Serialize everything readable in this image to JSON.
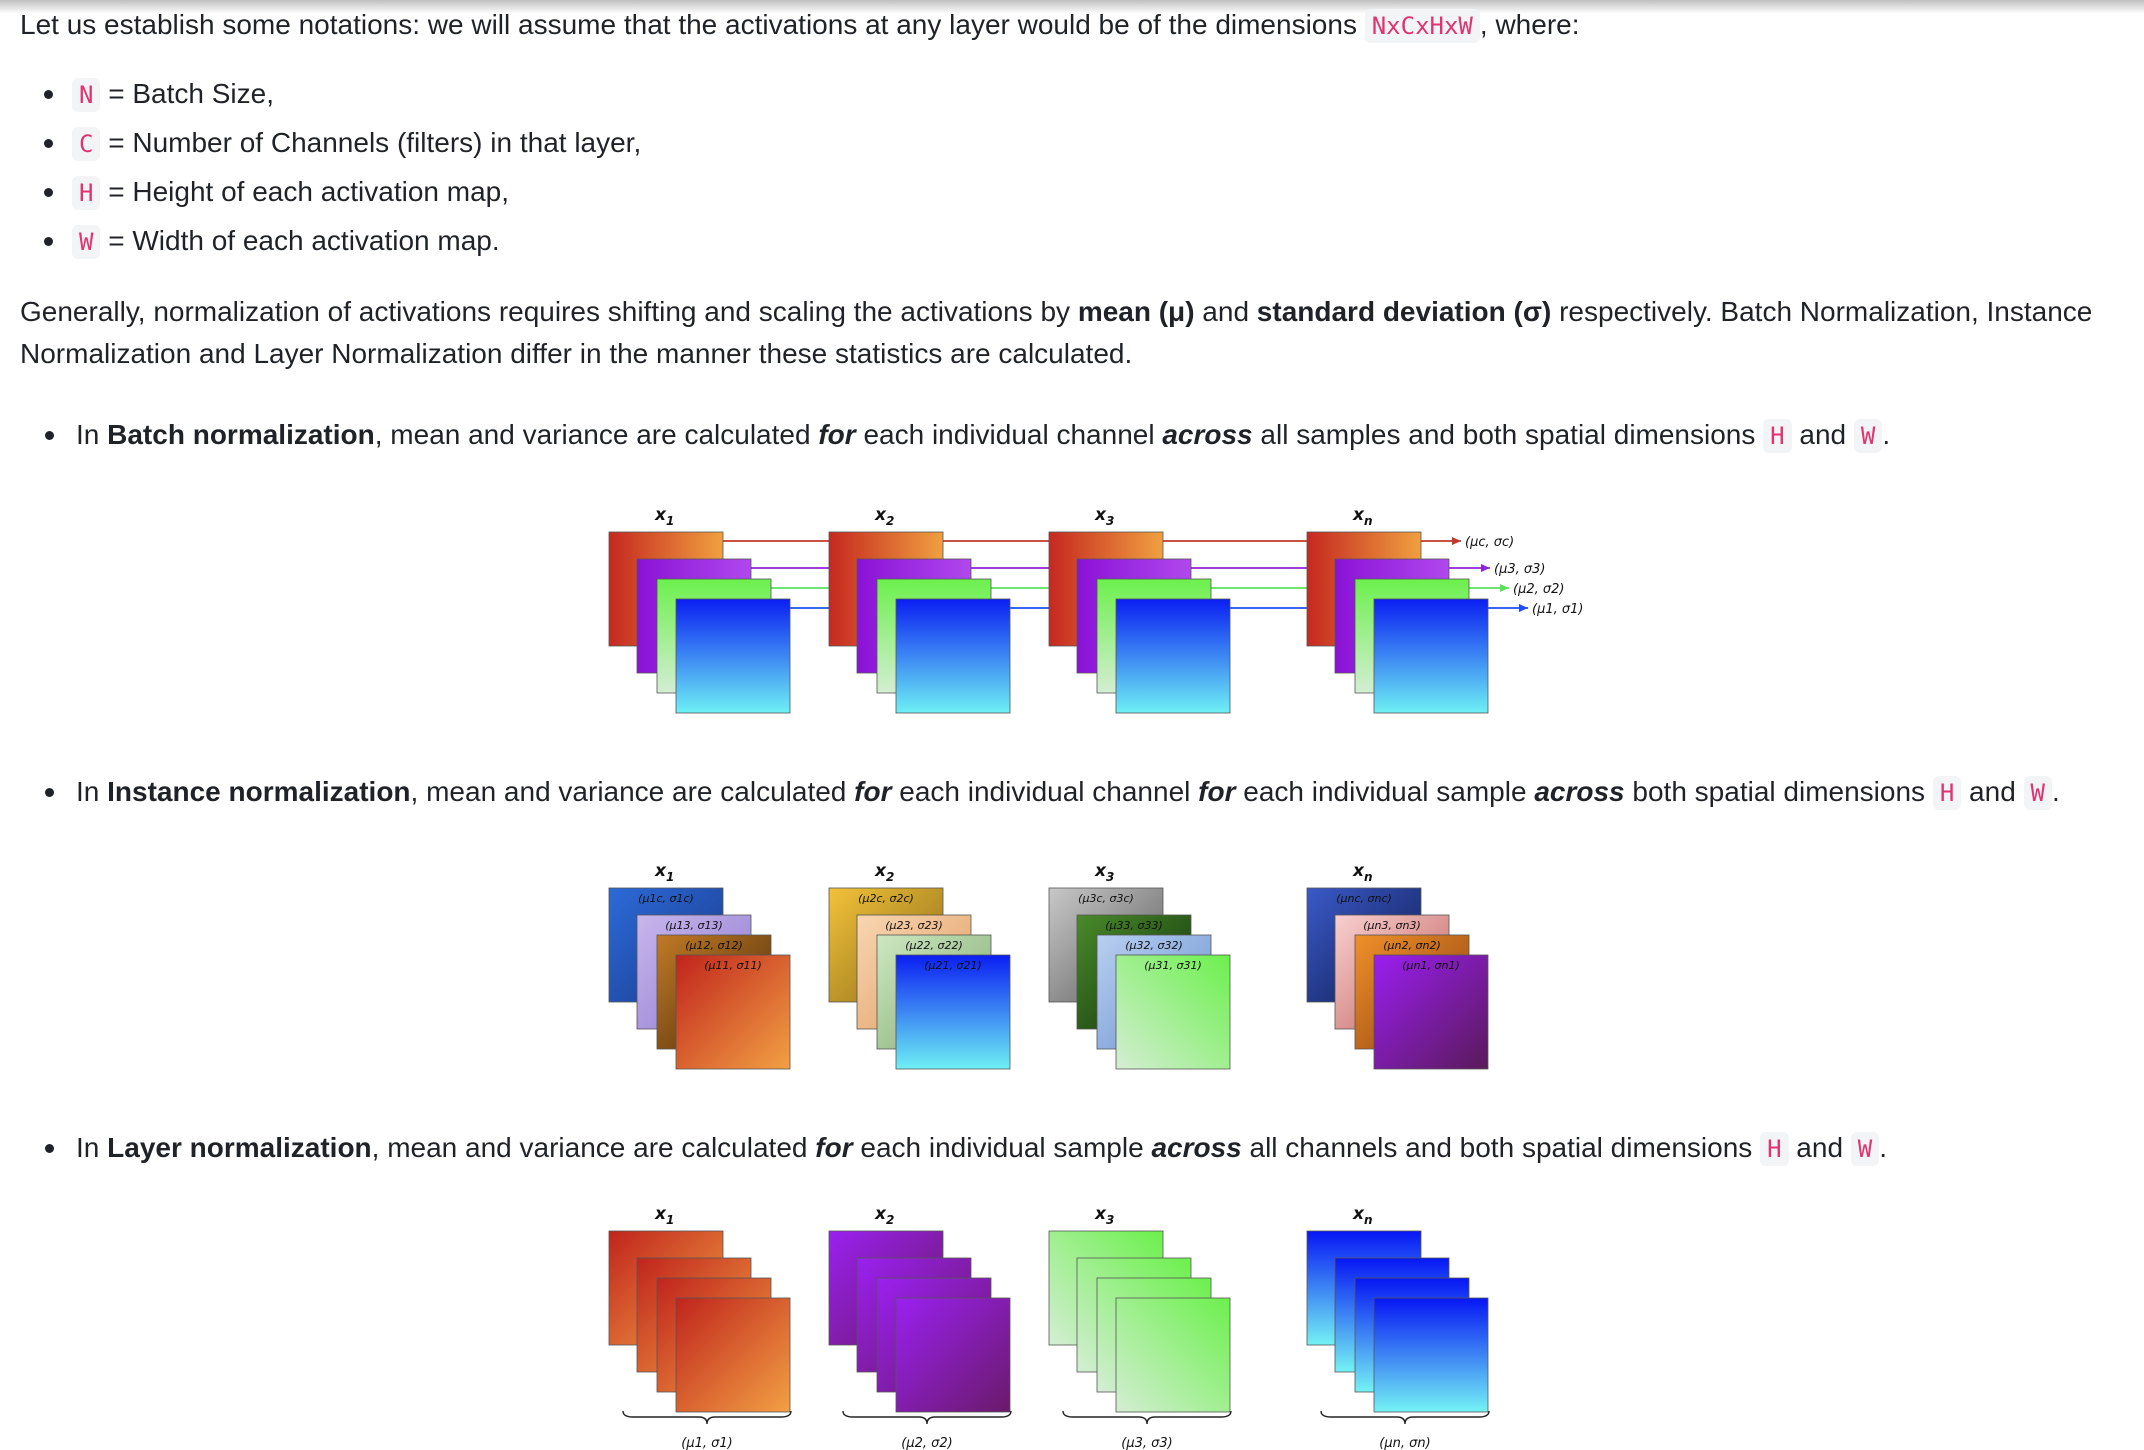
{
  "intro": {
    "before": "Let us establish some notations: we will assume that the activations at any layer would be of the dimensions ",
    "dims_code": "NxCxHxW",
    "after": ", where:"
  },
  "notation": [
    {
      "code": "N",
      "text": " = Batch Size,"
    },
    {
      "code": "C",
      "text": " = Number of Channels (filters) in that layer,"
    },
    {
      "code": "H",
      "text": " = Height of each activation map,"
    },
    {
      "code": "W",
      "text": " = Width of each activation map."
    }
  ],
  "general": {
    "t1": "Generally, normalization of activations requires shifting and scaling the activations by ",
    "b1": "mean (μ)",
    "t2": " and ",
    "b2": "standard deviation (σ)",
    "t3": " respectively. Batch Normalization, Instance Normalization and Layer Normalization differ in the manner these statistics are calculated."
  },
  "batch": {
    "t1": "In ",
    "b1": "Batch normalization",
    "t2": ", mean and variance are calculated ",
    "i1": "for",
    "t3": " each individual channel ",
    "i2": "across",
    "t4": " all samples and both spatial dimensions ",
    "c1": "H",
    "t5": " and ",
    "c2": "W",
    "t6": "."
  },
  "instance": {
    "t1": "In ",
    "b1": "Instance normalization",
    "t2": ", mean and variance are calculated ",
    "i1": "for",
    "t3": " each individual channel ",
    "i2": "for",
    "t4": " each individual sample ",
    "i3": "across",
    "t5": " both spatial dimensions ",
    "c1": "H",
    "t6": " and ",
    "c2": "W",
    "t7": "."
  },
  "layer": {
    "t1": "In ",
    "b1": "Layer normalization",
    "t2": ", mean and variance are calculated ",
    "i1": "for",
    "t3": " each individual sample ",
    "i2": "across",
    "t4": " all channels and both spatial dimensions ",
    "c1": "H",
    "t5": " and ",
    "c2": "W",
    "t6": "."
  },
  "sample_labels": [
    "x1",
    "x2",
    "x3",
    "xn"
  ],
  "batch_fig": {
    "stat_labels": [
      "(μc, σc)",
      "(μ3, σ3)",
      "(μ2, σ2)",
      "(μ1, σ1)"
    ],
    "channel_colors": [
      "#c0392b",
      "#8e24d8",
      "#5be05b",
      "#1d4ef2"
    ]
  },
  "instance_fig": {
    "stat_labels": [
      [
        "(μ1c, σ1c)",
        "(μ13, σ13)",
        "(μ12, σ12)",
        "(μ11, σ11)"
      ],
      [
        "(μ2c, σ2c)",
        "(μ23, σ23)",
        "(μ22, σ22)",
        "(μ21, σ21)"
      ],
      [
        "(μ3c, σ3c)",
        "(μ33, σ33)",
        "(μ32, σ32)",
        "(μ31, σ31)"
      ],
      [
        "(μnc, σnc)",
        "(μn3, σn3)",
        "(μn2, σn2)",
        "(μn1, σn1)"
      ]
    ]
  },
  "layer_fig": {
    "stat_labels": [
      "(μ1, σ1)",
      "(μ2, σ2)",
      "(μ3, σ3)",
      "(μn, σn)"
    ]
  }
}
